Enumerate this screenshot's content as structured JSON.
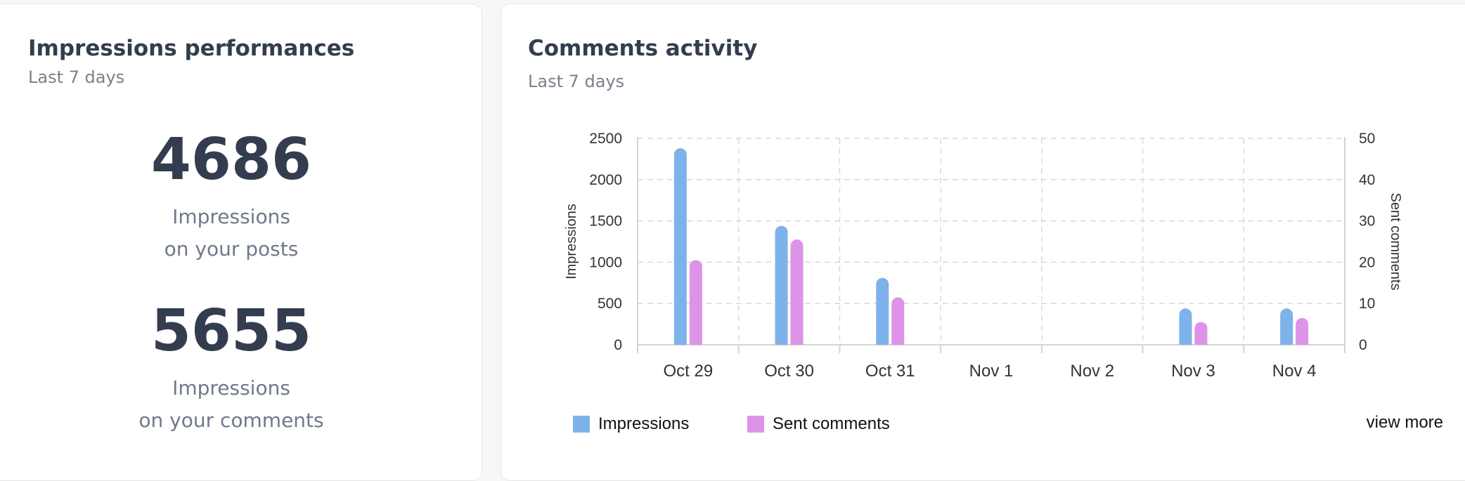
{
  "impressions_card": {
    "title": "Impressions performances",
    "subtitle": "Last 7 days",
    "stats": [
      {
        "value": "4686",
        "label_line1": "Impressions",
        "label_line2": "on your posts"
      },
      {
        "value": "5655",
        "label_line1": "Impressions",
        "label_line2": "on your comments"
      }
    ]
  },
  "comments_card": {
    "title": "Comments activity",
    "subtitle": "Last 7 days",
    "view_more": "view more"
  },
  "colors": {
    "impressions": "#7db3ea",
    "sent_comments": "#dd93e8"
  },
  "chart_data": {
    "type": "bar",
    "categories": [
      "Oct 29",
      "Oct 30",
      "Oct 31",
      "Nov 1",
      "Nov 2",
      "Nov 3",
      "Nov 4"
    ],
    "series": [
      {
        "name": "Impressions",
        "axis": "left",
        "values": [
          2380,
          1440,
          810,
          0,
          0,
          440,
          440
        ]
      },
      {
        "name": "Sent comments",
        "axis": "right",
        "values": [
          20.5,
          25.5,
          11.5,
          0,
          0,
          5.5,
          6.5
        ]
      }
    ],
    "ylabel": "Impressions",
    "y2label": "Sent comments",
    "ylim": [
      0,
      2500
    ],
    "y2lim": [
      0,
      50
    ],
    "yticks": [
      "2500",
      "2000",
      "1500",
      "1000",
      "500",
      "0"
    ],
    "y2ticks": [
      "50",
      "40",
      "30",
      "20",
      "10",
      "0"
    ],
    "grid": true,
    "legend": "bottom-left"
  }
}
